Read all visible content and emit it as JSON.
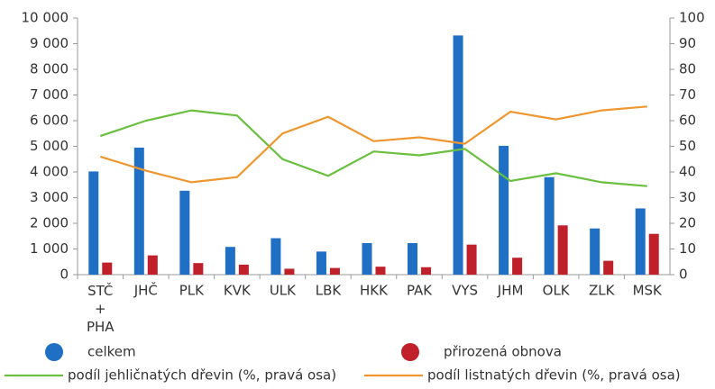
{
  "chart_data": {
    "type": "bar",
    "categories": [
      "STČ\n+\nPHA",
      "JHČ",
      "PLK",
      "KVK",
      "ULK",
      "LBK",
      "HKK",
      "PAK",
      "VYS",
      "JHM",
      "OLK",
      "ZLK",
      "MSK"
    ],
    "series": [
      {
        "name": "celkem",
        "color": "#1f6fc5",
        "type": "bar",
        "values": [
          4020,
          4950,
          3270,
          1080,
          1420,
          900,
          1230,
          1230,
          9320,
          5020,
          3800,
          1800,
          2580
        ]
      },
      {
        "name": "přirozená obnova",
        "color": "#c0202a",
        "type": "bar",
        "values": [
          470,
          750,
          450,
          390,
          230,
          260,
          310,
          290,
          1170,
          660,
          1920,
          540,
          1590
        ]
      },
      {
        "name": "podíl jehličnatých dřevin (%, pravá osa)",
        "color": "#6abf3f",
        "type": "line",
        "axis": "y2",
        "values": [
          54,
          60,
          64,
          62,
          45,
          38.5,
          48,
          46.5,
          49,
          36.5,
          39.5,
          36,
          34.5
        ]
      },
      {
        "name": "podíl listnatých dřevin (%, pravá osa)",
        "color": "#f0962e",
        "type": "line",
        "axis": "y2",
        "values": [
          46,
          40.5,
          36,
          38,
          55,
          61.5,
          52,
          53.5,
          51,
          63.5,
          60.5,
          64,
          65.5
        ]
      }
    ],
    "ylim": [
      0,
      10000
    ],
    "yticks": [
      0,
      {
        "value": 1000,
        "label": "1 000"
      },
      {
        "value": 2000,
        "label": "2 000"
      },
      {
        "value": 3000,
        "label": "3 000"
      },
      {
        "value": 4000,
        "label": "4 000"
      },
      {
        "value": 5000,
        "label": "5 000"
      },
      {
        "value": 6000,
        "label": "6 000"
      },
      {
        "value": 7000,
        "label": "7 000"
      },
      {
        "value": 8000,
        "label": "8 000"
      },
      {
        "value": 9000,
        "label": "9 000"
      },
      {
        "value": 10000,
        "label": "10 000"
      }
    ],
    "y2lim": [
      0,
      100
    ],
    "y2ticks": [
      0,
      10,
      20,
      30,
      40,
      50,
      60,
      70,
      80,
      90,
      100
    ],
    "grid": false,
    "legend": "bottom"
  }
}
